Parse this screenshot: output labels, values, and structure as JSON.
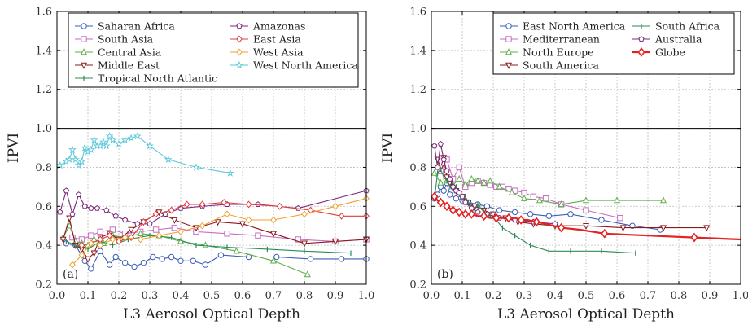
{
  "chart_data": [
    {
      "type": "line",
      "panel_label": "(a)",
      "xlabel": "L3 Aerosol Optical Depth",
      "ylabel": "IPVI",
      "xlim": [
        0.0,
        1.0
      ],
      "ylim": [
        0.2,
        1.6
      ],
      "x_ticks": [
        "0.0",
        "0.1",
        "0.2",
        "0.3",
        "0.4",
        "0.5",
        "0.6",
        "0.7",
        "0.8",
        "0.9",
        "1.0"
      ],
      "y_ticks": [
        "0.2",
        "0.4",
        "0.6",
        "0.8",
        "1.0",
        "1.2",
        "1.4",
        "1.6"
      ],
      "reference_line": 1.0,
      "grid": true,
      "legend": {
        "placement": "top",
        "columns": 2
      },
      "series": [
        {
          "name": "Saharan Africa",
          "color": "#3a5fb8",
          "marker": "circle",
          "x": [
            0.03,
            0.06,
            0.09,
            0.11,
            0.14,
            0.17,
            0.19,
            0.22,
            0.25,
            0.28,
            0.31,
            0.34,
            0.37,
            0.4,
            0.44,
            0.48,
            0.53,
            0.62,
            0.71,
            0.82,
            0.92,
            1.0
          ],
          "y": [
            0.41,
            0.4,
            0.32,
            0.28,
            0.37,
            0.3,
            0.34,
            0.31,
            0.29,
            0.31,
            0.34,
            0.33,
            0.34,
            0.32,
            0.32,
            0.3,
            0.35,
            0.34,
            0.34,
            0.33,
            0.33,
            0.33
          ]
        },
        {
          "name": "South Asia",
          "color": "#c76dc3",
          "marker": "square",
          "x": [
            0.05,
            0.08,
            0.11,
            0.14,
            0.18,
            0.22,
            0.27,
            0.32,
            0.38,
            0.45,
            0.55,
            0.65,
            0.78,
            0.9,
            1.0
          ],
          "y": [
            0.44,
            0.43,
            0.45,
            0.47,
            0.48,
            0.46,
            0.47,
            0.48,
            0.49,
            0.47,
            0.46,
            0.45,
            0.43,
            0.42,
            0.43
          ]
        },
        {
          "name": "Central Asia",
          "color": "#5fae4a",
          "marker": "triangle-up",
          "x": [
            0.02,
            0.04,
            0.06,
            0.08,
            0.1,
            0.12,
            0.15,
            0.18,
            0.22,
            0.27,
            0.33,
            0.4,
            0.48,
            0.58,
            0.7,
            0.81
          ],
          "y": [
            0.44,
            0.5,
            0.42,
            0.41,
            0.4,
            0.43,
            0.41,
            0.45,
            0.44,
            0.46,
            0.45,
            0.42,
            0.4,
            0.37,
            0.32,
            0.25
          ]
        },
        {
          "name": "Middle East",
          "color": "#8b1a1a",
          "marker": "triangle-down",
          "x": [
            0.02,
            0.04,
            0.06,
            0.08,
            0.1,
            0.12,
            0.14,
            0.17,
            0.2,
            0.24,
            0.28,
            0.33,
            0.38,
            0.45,
            0.52,
            0.6,
            0.7,
            0.8,
            0.9,
            1.0
          ],
          "y": [
            0.43,
            0.54,
            0.4,
            0.38,
            0.33,
            0.36,
            0.44,
            0.46,
            0.43,
            0.48,
            0.52,
            0.57,
            0.53,
            0.49,
            0.52,
            0.51,
            0.46,
            0.41,
            0.42,
            0.43
          ]
        },
        {
          "name": "Tropical North Atlantic",
          "color": "#2e8b57",
          "marker": "tick",
          "x": [
            0.03,
            0.06,
            0.1,
            0.14,
            0.18,
            0.23,
            0.3,
            0.37,
            0.45,
            0.55,
            0.68,
            0.8,
            0.95
          ],
          "y": [
            0.42,
            0.4,
            0.38,
            0.42,
            0.4,
            0.43,
            0.45,
            0.44,
            0.4,
            0.39,
            0.38,
            0.37,
            0.36
          ]
        },
        {
          "name": "Amazonas",
          "color": "#7b2a7b",
          "marker": "pentagon",
          "x": [
            0.01,
            0.03,
            0.05,
            0.07,
            0.09,
            0.11,
            0.13,
            0.16,
            0.19,
            0.22,
            0.26,
            0.3,
            0.35,
            0.4,
            0.47,
            0.55,
            0.65,
            0.78,
            1.0
          ],
          "y": [
            0.57,
            0.68,
            0.56,
            0.66,
            0.6,
            0.59,
            0.59,
            0.58,
            0.55,
            0.53,
            0.51,
            0.51,
            0.56,
            0.59,
            0.6,
            0.61,
            0.61,
            0.59,
            0.68
          ]
        },
        {
          "name": "East Asia",
          "color": "#e03c3c",
          "marker": "diamond",
          "x": [
            0.08,
            0.11,
            0.14,
            0.17,
            0.2,
            0.24,
            0.28,
            0.32,
            0.37,
            0.42,
            0.47,
            0.54,
            0.62,
            0.72,
            0.82,
            0.92,
            1.0
          ],
          "y": [
            0.4,
            0.41,
            0.43,
            0.45,
            0.42,
            0.44,
            0.52,
            0.56,
            0.58,
            0.61,
            0.61,
            0.62,
            0.61,
            0.6,
            0.58,
            0.55,
            0.55
          ]
        },
        {
          "name": "West Asia",
          "color": "#f0a030",
          "marker": "diamond",
          "x": [
            0.05,
            0.08,
            0.11,
            0.14,
            0.18,
            0.22,
            0.27,
            0.33,
            0.4,
            0.47,
            0.55,
            0.62,
            0.7,
            0.8,
            0.9,
            1.0
          ],
          "y": [
            0.3,
            0.35,
            0.41,
            0.4,
            0.43,
            0.44,
            0.43,
            0.45,
            0.47,
            0.5,
            0.56,
            0.53,
            0.53,
            0.56,
            0.6,
            0.64
          ]
        },
        {
          "name": "West North America",
          "color": "#5bc8d8",
          "marker": "star",
          "x": [
            0.01,
            0.03,
            0.04,
            0.05,
            0.06,
            0.07,
            0.08,
            0.09,
            0.1,
            0.11,
            0.12,
            0.13,
            0.14,
            0.15,
            0.16,
            0.17,
            0.18,
            0.2,
            0.22,
            0.24,
            0.26,
            0.3,
            0.36,
            0.45,
            0.56
          ],
          "y": [
            0.81,
            0.83,
            0.84,
            0.89,
            0.84,
            0.81,
            0.83,
            0.9,
            0.88,
            0.89,
            0.94,
            0.91,
            0.91,
            0.93,
            0.91,
            0.96,
            0.94,
            0.92,
            0.94,
            0.95,
            0.96,
            0.91,
            0.84,
            0.8,
            0.77
          ]
        }
      ]
    },
    {
      "type": "line",
      "panel_label": "(b)",
      "xlabel": "L3 Aerosol Optical Depth",
      "ylabel": "IPVI",
      "xlim": [
        0.0,
        1.0
      ],
      "ylim": [
        0.2,
        1.6
      ],
      "x_ticks": [
        "0.0",
        "0.1",
        "0.2",
        "0.3",
        "0.4",
        "0.5",
        "0.6",
        "0.7",
        "0.8",
        "0.9",
        "1.0"
      ],
      "y_ticks": [
        "0.2",
        "0.4",
        "0.6",
        "0.8",
        "1.0",
        "1.2",
        "1.4",
        "1.6"
      ],
      "reference_line": 1.0,
      "grid": true,
      "legend": {
        "placement": "top",
        "columns": 2
      },
      "series": [
        {
          "name": "East North America",
          "color": "#3a5fb8",
          "marker": "circle",
          "x": [
            0.01,
            0.02,
            0.03,
            0.04,
            0.05,
            0.06,
            0.08,
            0.1,
            0.12,
            0.15,
            0.18,
            0.22,
            0.27,
            0.32,
            0.38,
            0.45,
            0.55,
            0.65,
            0.74
          ],
          "y": [
            0.64,
            0.66,
            0.7,
            0.68,
            0.72,
            0.66,
            0.64,
            0.63,
            0.62,
            0.61,
            0.6,
            0.58,
            0.57,
            0.56,
            0.55,
            0.56,
            0.53,
            0.5,
            0.48
          ]
        },
        {
          "name": "Mediterranean",
          "color": "#c76dc3",
          "marker": "square",
          "x": [
            0.03,
            0.05,
            0.07,
            0.09,
            0.11,
            0.13,
            0.15,
            0.17,
            0.19,
            0.21,
            0.23,
            0.25,
            0.27,
            0.3,
            0.33,
            0.37,
            0.42,
            0.5,
            0.61
          ],
          "y": [
            0.78,
            0.84,
            0.74,
            0.8,
            0.7,
            0.72,
            0.73,
            0.72,
            0.71,
            0.7,
            0.7,
            0.69,
            0.68,
            0.67,
            0.65,
            0.64,
            0.61,
            0.58,
            0.54
          ]
        },
        {
          "name": "North Europe",
          "color": "#5fae4a",
          "marker": "triangle-up",
          "x": [
            0.01,
            0.03,
            0.05,
            0.07,
            0.09,
            0.11,
            0.13,
            0.15,
            0.17,
            0.19,
            0.22,
            0.26,
            0.3,
            0.35,
            0.42,
            0.5,
            0.6,
            0.75
          ],
          "y": [
            0.77,
            0.72,
            0.73,
            0.71,
            0.74,
            0.71,
            0.74,
            0.73,
            0.72,
            0.73,
            0.7,
            0.67,
            0.64,
            0.63,
            0.61,
            0.63,
            0.63,
            0.63
          ]
        },
        {
          "name": "South America",
          "color": "#8b1a1a",
          "marker": "triangle-down",
          "x": [
            0.02,
            0.03,
            0.04,
            0.05,
            0.06,
            0.08,
            0.1,
            0.12,
            0.14,
            0.17,
            0.2,
            0.24,
            0.28,
            0.33,
            0.4,
            0.5,
            0.62,
            0.75,
            0.89
          ],
          "y": [
            0.84,
            0.8,
            0.85,
            0.75,
            0.72,
            0.68,
            0.65,
            0.62,
            0.6,
            0.58,
            0.56,
            0.54,
            0.52,
            0.51,
            0.5,
            0.5,
            0.49,
            0.49,
            0.49
          ]
        },
        {
          "name": "South Africa",
          "color": "#2e8b57",
          "marker": "tick",
          "x": [
            0.01,
            0.02,
            0.03,
            0.04,
            0.05,
            0.06,
            0.07,
            0.08,
            0.09,
            0.1,
            0.11,
            0.12,
            0.13,
            0.14,
            0.15,
            0.17,
            0.19,
            0.21,
            0.23,
            0.27,
            0.32,
            0.38,
            0.45,
            0.55,
            0.66
          ],
          "y": [
            0.64,
            0.77,
            0.79,
            0.75,
            0.73,
            0.7,
            0.68,
            0.7,
            0.66,
            0.64,
            0.65,
            0.62,
            0.6,
            0.58,
            0.61,
            0.57,
            0.55,
            0.53,
            0.49,
            0.45,
            0.4,
            0.37,
            0.37,
            0.37,
            0.36
          ]
        },
        {
          "name": "Australia",
          "color": "#7b2a7b",
          "marker": "pentagon",
          "x": [
            0.01,
            0.02,
            0.03,
            0.04,
            0.05,
            0.06,
            0.07,
            0.08,
            0.09,
            0.1,
            0.11,
            0.13,
            0.15,
            0.18,
            0.22,
            0.27,
            0.33,
            0.4
          ],
          "y": [
            0.91,
            0.8,
            0.92,
            0.84,
            0.78,
            0.74,
            0.7,
            0.68,
            0.67,
            0.65,
            0.62,
            0.59,
            0.57,
            0.56,
            0.54,
            0.53,
            0.52,
            0.51
          ]
        },
        {
          "name": "Globe",
          "color": "#e32222",
          "marker": "diamond-large",
          "x": [
            0.01,
            0.02,
            0.03,
            0.04,
            0.05,
            0.06,
            0.07,
            0.08,
            0.09,
            0.1,
            0.11,
            0.12,
            0.13,
            0.15,
            0.17,
            0.19,
            0.21,
            0.23,
            0.25,
            0.27,
            0.29,
            0.31,
            0.34,
            0.37,
            0.42,
            0.48,
            0.56,
            0.7,
            0.85,
            1.0
          ],
          "y": [
            0.65,
            0.63,
            0.62,
            0.62,
            0.6,
            0.59,
            0.58,
            0.58,
            0.57,
            0.57,
            0.56,
            0.56,
            0.56,
            0.55,
            0.55,
            0.54,
            0.54,
            0.54,
            0.54,
            0.54,
            0.53,
            0.53,
            0.52,
            0.51,
            0.49,
            0.48,
            0.46,
            0.45,
            0.44,
            0.43
          ]
        }
      ]
    }
  ]
}
